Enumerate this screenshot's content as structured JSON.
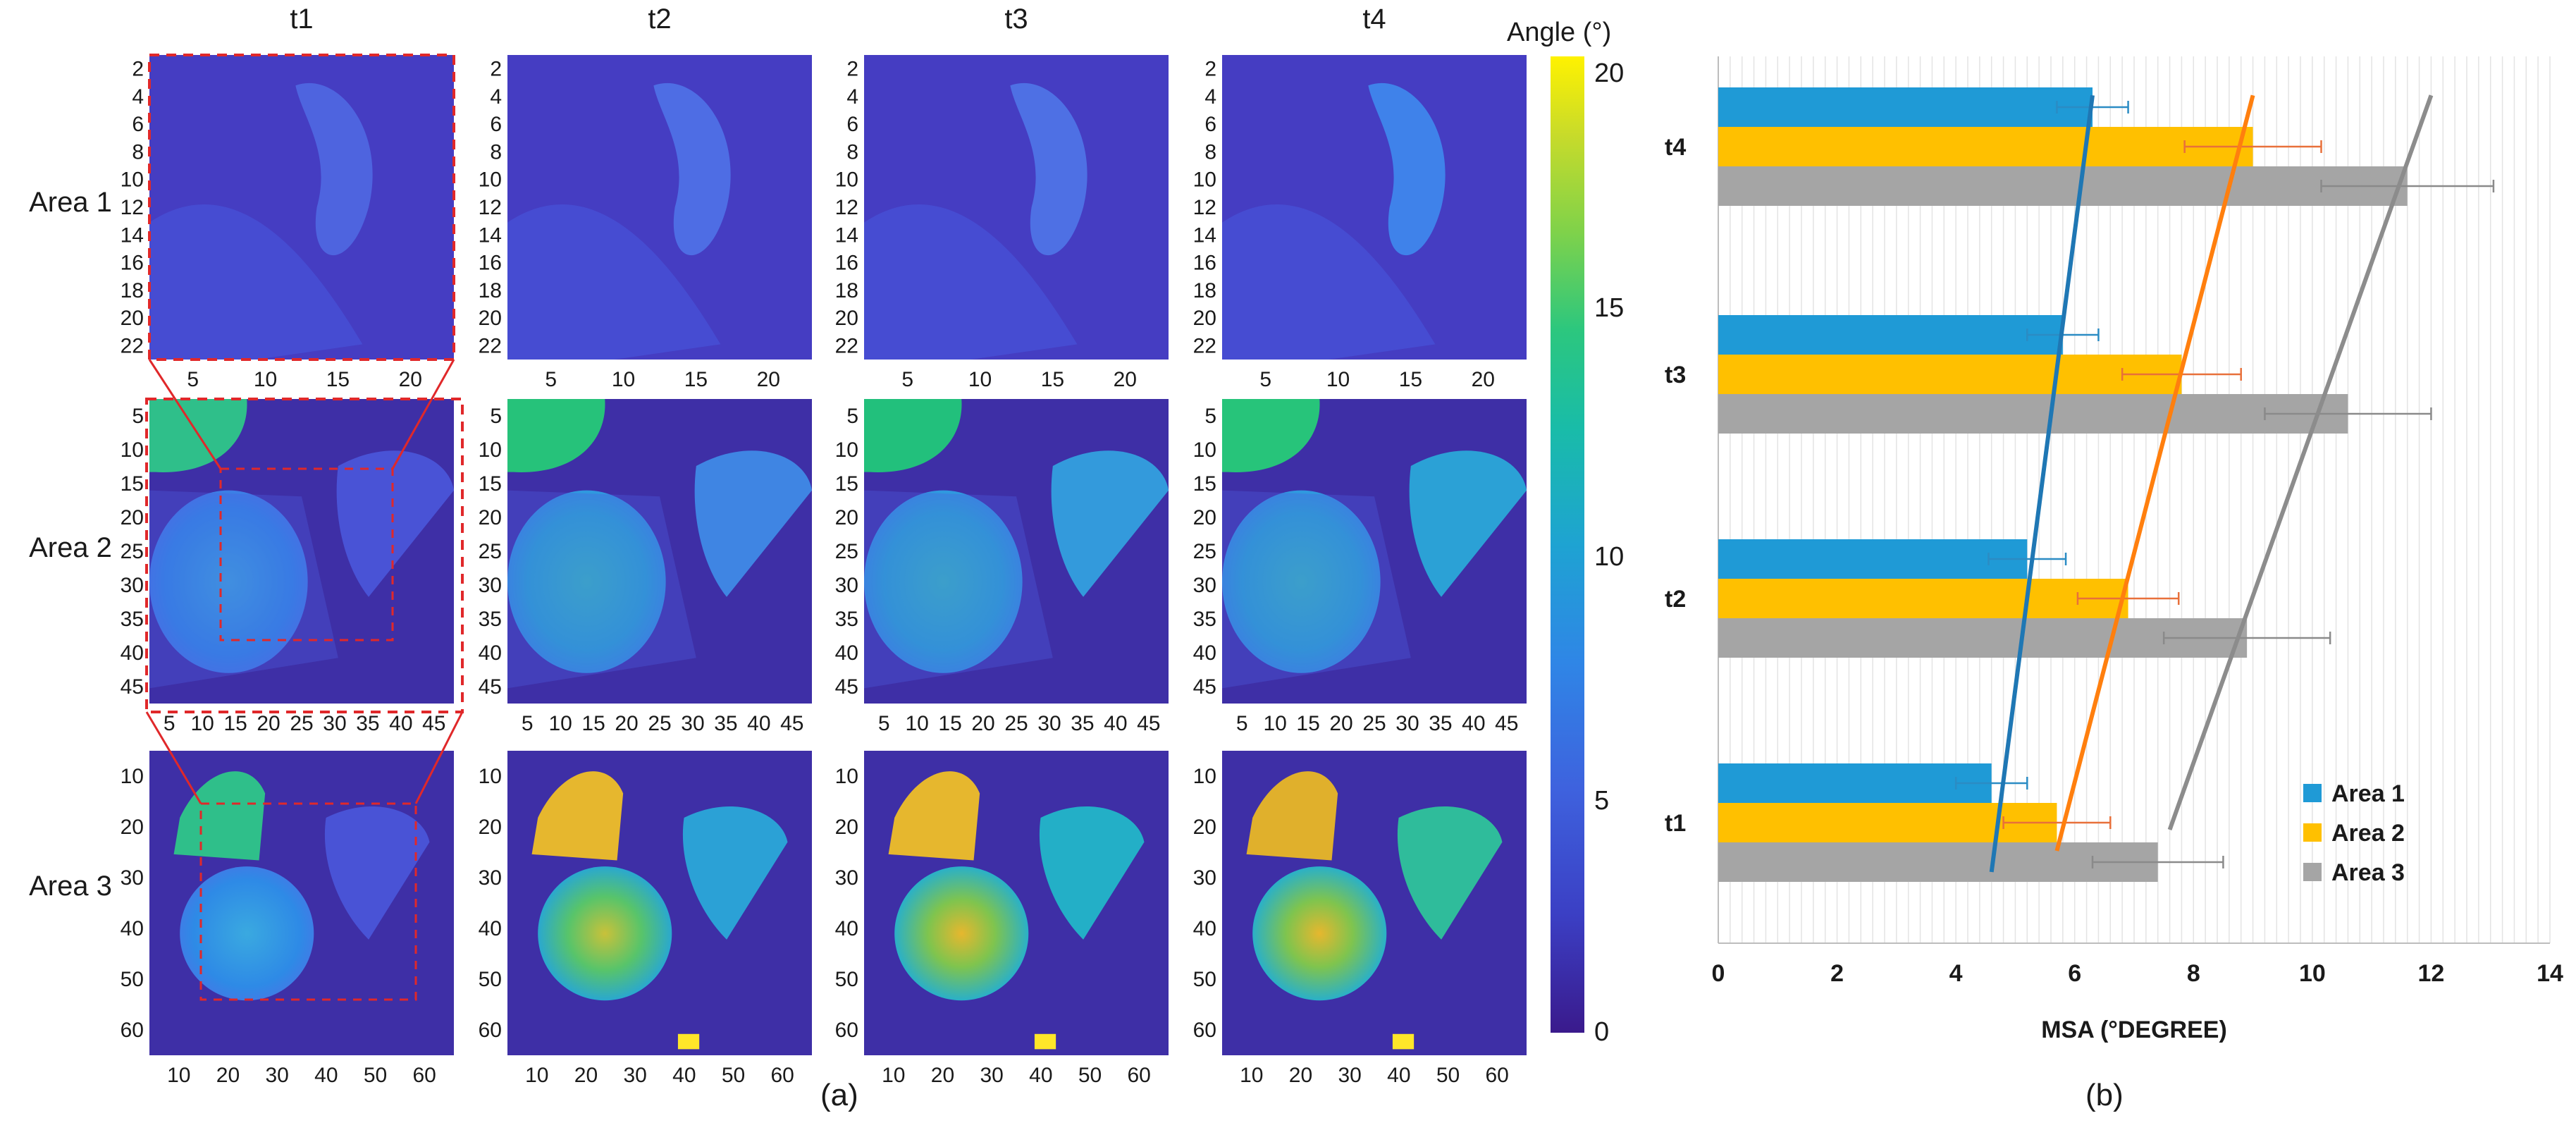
{
  "left_panel": {
    "column_titles": [
      "t1",
      "t2",
      "t3",
      "t4"
    ],
    "row_titles": [
      "Area 1",
      "Area 2",
      "Area 3"
    ],
    "rows": [
      {
        "y_ticks": [
          "2",
          "4",
          "6",
          "8",
          "10",
          "12",
          "14",
          "16",
          "18",
          "20",
          "22"
        ],
        "x_ticks": [
          "5",
          "10",
          "15",
          "20"
        ]
      },
      {
        "y_ticks": [
          "5",
          "10",
          "15",
          "20",
          "25",
          "30",
          "35",
          "40",
          "45"
        ],
        "x_ticks": [
          "5",
          "10",
          "15",
          "20",
          "25",
          "30",
          "35",
          "40",
          "45"
        ]
      },
      {
        "y_ticks": [
          "10",
          "20",
          "30",
          "40",
          "50",
          "60"
        ],
        "x_ticks": [
          "10",
          "20",
          "30",
          "40",
          "50",
          "60"
        ]
      }
    ],
    "colorbar": {
      "title": "Angle (°)",
      "ticks": [
        "20",
        "15",
        "10",
        "5",
        "0"
      ],
      "colors": [
        "#440154",
        "#3b2f9e",
        "#3a52cf",
        "#3e6fe2",
        "#2f8ae8",
        "#1fa4d6",
        "#18bcb3",
        "#2cc98a",
        "#5ad25c",
        "#9ed93a",
        "#d9dd22",
        "#fde725"
      ]
    },
    "caption": "(a)"
  },
  "chart_data": {
    "type": "bar",
    "orientation": "horizontal",
    "categories": [
      "t1",
      "t2",
      "t3",
      "t4"
    ],
    "series": [
      {
        "name": "Area 1",
        "color": "#1f9ad6",
        "values": [
          4.6,
          5.2,
          5.8,
          6.3
        ],
        "errors": [
          0.6,
          0.65,
          0.6,
          0.6
        ]
      },
      {
        "name": "Area 2",
        "color": "#ffc000",
        "values": [
          5.7,
          6.9,
          7.8,
          9.0
        ],
        "errors": [
          0.9,
          0.85,
          1.0,
          1.15
        ]
      },
      {
        "name": "Area 3",
        "color": "#a5a5a5",
        "values": [
          7.4,
          8.9,
          10.6,
          11.6
        ],
        "errors": [
          1.1,
          1.4,
          1.4,
          1.45
        ]
      }
    ],
    "trend_lines": [
      {
        "series": "Area 1",
        "color": "#1f77b4",
        "from": [
          4.6,
          "t1"
        ],
        "to": [
          6.3,
          "t4"
        ]
      },
      {
        "series": "Area 2",
        "color": "#ff7f0e",
        "from": [
          5.7,
          "t1"
        ],
        "to": [
          9.0,
          "t4"
        ]
      },
      {
        "series": "Area 3",
        "color": "#8c8c8c",
        "from": [
          7.6,
          "t1"
        ],
        "to": [
          12.0,
          "t4"
        ]
      }
    ],
    "x_ticks": [
      "0",
      "2",
      "4",
      "6",
      "8",
      "10",
      "12",
      "14"
    ],
    "xlim": [
      0,
      14
    ],
    "xlabel": "MSA (°DEGREE)",
    "legend": {
      "position": "bottom-right",
      "labels": [
        "Area 1",
        "Area 2",
        "Area 3"
      ]
    },
    "caption": "(b)"
  }
}
